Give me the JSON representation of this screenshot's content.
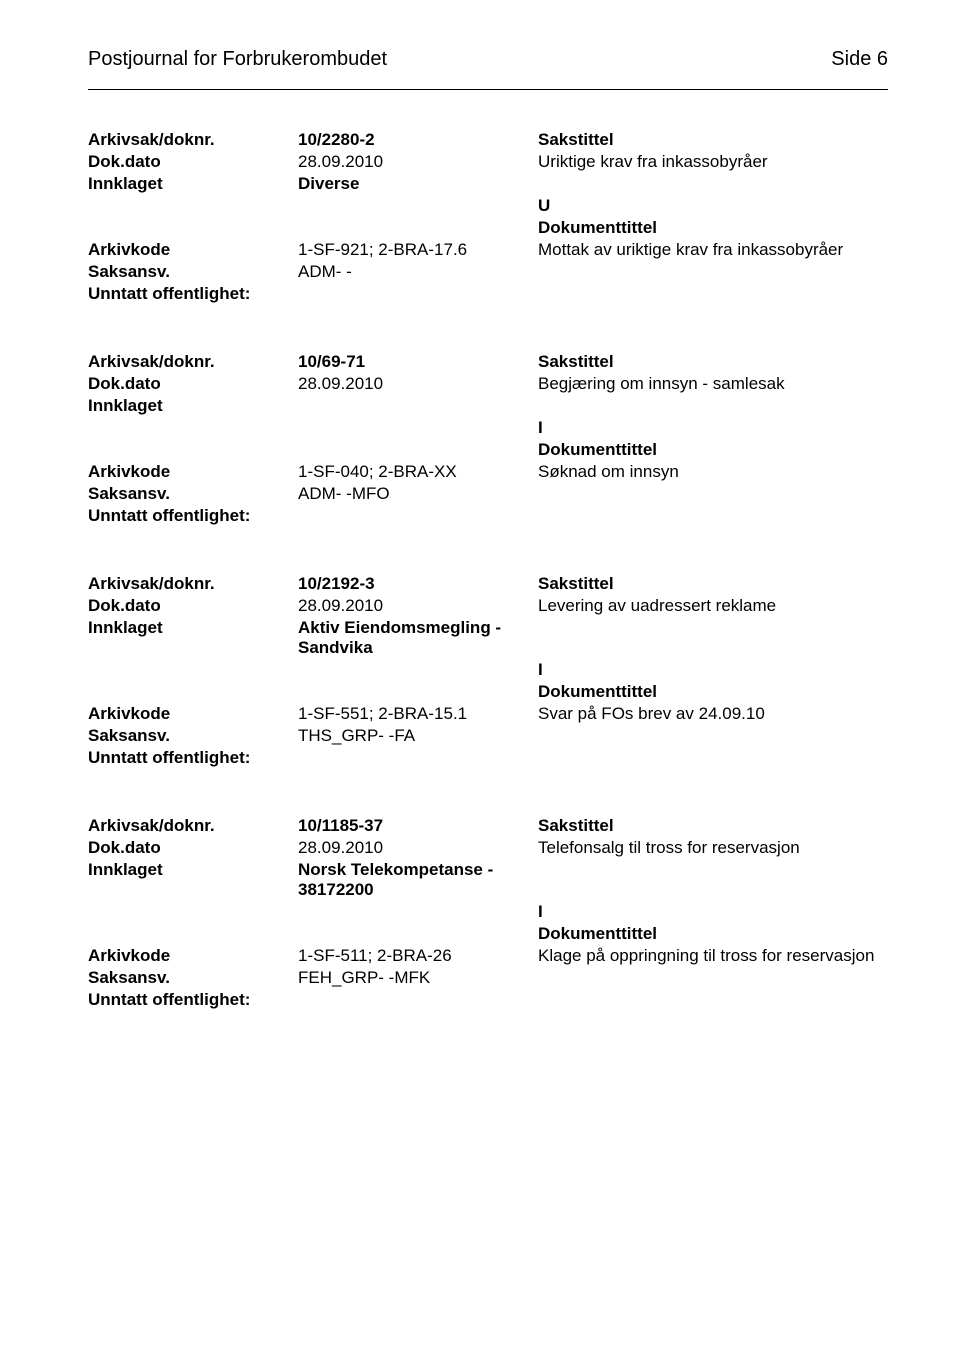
{
  "header": {
    "title": "Postjournal for Forbrukerombudet",
    "page": "Side 6"
  },
  "labels": {
    "arkivsak": "Arkivsak/doknr.",
    "dokdato": "Dok.dato",
    "innklaget": "Innklaget",
    "arkivkode": "Arkivkode",
    "saksansv": "Saksansv.",
    "unntatt": "Unntatt offentlighet:",
    "sakstittel": "Sakstittel",
    "dokumenttittel": "Dokumenttittel"
  },
  "records": [
    {
      "doknr": "10/2280-2",
      "dato": "28.09.2010",
      "sakstittel": "Uriktige krav fra inkassobyråer",
      "innklaget": "Diverse",
      "direction": "U",
      "arkivkode": "1-SF-921; 2-BRA-17.6",
      "dokumenttittel": "Mottak av uriktige krav fra inkassobyråer",
      "saksansv": "ADM- -"
    },
    {
      "doknr": "10/69-71",
      "dato": "28.09.2010",
      "sakstittel": "Begjæring om innsyn - samlesak",
      "innklaget": "",
      "direction": "I",
      "arkivkode": "1-SF-040; 2-BRA-XX",
      "dokumenttittel": "Søknad om innsyn",
      "saksansv": "ADM- -MFO"
    },
    {
      "doknr": "10/2192-3",
      "dato": "28.09.2010",
      "sakstittel": "Levering av uadressert reklame",
      "innklaget": "Aktiv Eiendomsmegling - Sandvika",
      "direction": "I",
      "arkivkode": "1-SF-551; 2-BRA-15.1",
      "dokumenttittel": "Svar på FOs brev av 24.09.10",
      "saksansv": "THS_GRP- -FA"
    },
    {
      "doknr": "10/1185-37",
      "dato": "28.09.2010",
      "sakstittel": "Telefonsalg til tross for reservasjon",
      "innklaget": "Norsk Telekompetanse - 38172200",
      "direction": "I",
      "arkivkode": "1-SF-511; 2-BRA-26",
      "dokumenttittel": "Klage på oppringning til tross for reservasjon",
      "saksansv": "FEH_GRP- -MFK"
    }
  ]
}
